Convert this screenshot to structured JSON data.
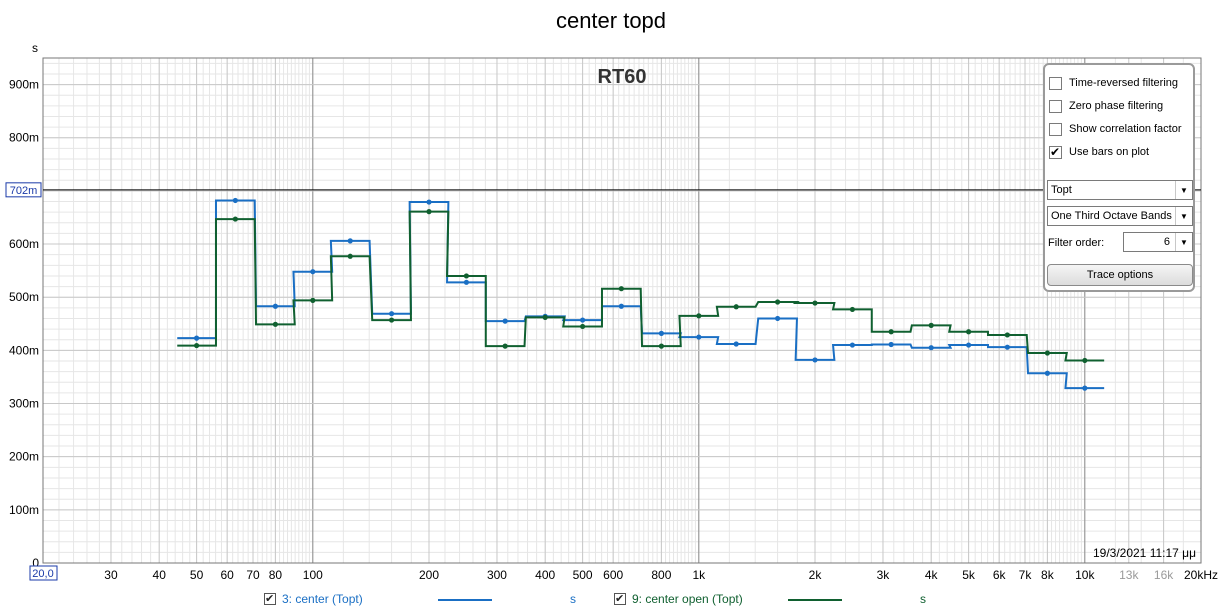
{
  "window_title": "center topd",
  "chart_data": {
    "type": "line",
    "title": "RT60",
    "ylabel_unit": "s",
    "x_scale": "log",
    "xlim": [
      20,
      20000
    ],
    "ylim": [
      0,
      0.95
    ],
    "x_ticks": [
      {
        "v": 20,
        "label": "20,0"
      },
      {
        "v": 30,
        "label": "30"
      },
      {
        "v": 40,
        "label": "40"
      },
      {
        "v": 50,
        "label": "50"
      },
      {
        "v": 60,
        "label": "60"
      },
      {
        "v": 70,
        "label": "70"
      },
      {
        "v": 80,
        "label": "80"
      },
      {
        "v": 100,
        "label": "100"
      },
      {
        "v": 200,
        "label": "200"
      },
      {
        "v": 300,
        "label": "300"
      },
      {
        "v": 400,
        "label": "400"
      },
      {
        "v": 500,
        "label": "500"
      },
      {
        "v": 600,
        "label": "600"
      },
      {
        "v": 800,
        "label": "800"
      },
      {
        "v": 1000,
        "label": "1k"
      },
      {
        "v": 2000,
        "label": "2k"
      },
      {
        "v": 3000,
        "label": "3k"
      },
      {
        "v": 4000,
        "label": "4k"
      },
      {
        "v": 5000,
        "label": "5k"
      },
      {
        "v": 6000,
        "label": "6k"
      },
      {
        "v": 7000,
        "label": "7k"
      },
      {
        "v": 8000,
        "label": "8k"
      },
      {
        "v": 10000,
        "label": "10k"
      },
      {
        "v": 13000,
        "label": "13k"
      },
      {
        "v": 16000,
        "label": "16k"
      },
      {
        "v": 20000,
        "label": "20kHz"
      }
    ],
    "y_ticks": [
      {
        "v": 0,
        "label": "0"
      },
      {
        "v": 0.1,
        "label": "100m"
      },
      {
        "v": 0.2,
        "label": "200m"
      },
      {
        "v": 0.3,
        "label": "300m"
      },
      {
        "v": 0.4,
        "label": "400m"
      },
      {
        "v": 0.5,
        "label": "500m"
      },
      {
        "v": 0.6,
        "label": "600m"
      },
      {
        "v": 0.7,
        "label": "700m"
      },
      {
        "v": 0.8,
        "label": "800m"
      },
      {
        "v": 0.9,
        "label": "900m"
      }
    ],
    "cursor_y": {
      "v": 0.702,
      "label": "702m"
    },
    "timestamp": "19/3/2021 11:17 μμ",
    "categories": [
      50,
      63,
      80,
      100,
      125,
      160,
      200,
      250,
      315,
      400,
      500,
      630,
      800,
      1000,
      1250,
      1600,
      2000,
      2500,
      3150,
      4000,
      5000,
      6300,
      8000,
      10000
    ],
    "series": [
      {
        "name": "3: center (Topt)",
        "color": "#1a6fc4",
        "values": [
          0.423,
          0.682,
          0.483,
          0.548,
          0.606,
          0.469,
          0.679,
          0.528,
          0.455,
          0.464,
          0.457,
          0.483,
          0.432,
          0.425,
          0.412,
          0.46,
          0.382,
          0.41,
          0.411,
          0.405,
          0.41,
          0.406,
          0.357,
          0.329
        ]
      },
      {
        "name": "9: center open (Topt)",
        "color": "#106030",
        "values": [
          0.409,
          0.647,
          0.449,
          0.494,
          0.577,
          0.457,
          0.661,
          0.54,
          0.408,
          0.462,
          0.445,
          0.516,
          0.408,
          0.465,
          0.482,
          0.491,
          0.489,
          0.477,
          0.435,
          0.447,
          0.435,
          0.429,
          0.395,
          0.381
        ]
      }
    ],
    "grid": true
  },
  "options_panel": {
    "time_reversed": {
      "label": "Time-reversed filtering",
      "checked": false
    },
    "zero_phase": {
      "label": "Zero phase filtering",
      "checked": false
    },
    "correlation": {
      "label": "Show correlation factor",
      "checked": false
    },
    "use_bars": {
      "label": "Use bars on plot",
      "checked": true
    },
    "method_select": "Topt",
    "bands_select": "One Third Octave Bands",
    "filter_order_label": "Filter order:",
    "filter_order_value": "6",
    "trace_button": "Trace options"
  },
  "legend": [
    {
      "label": "3: center (Topt)",
      "unit": "s",
      "color": "#1a6fc4"
    },
    {
      "label": "9: center open (Topt)",
      "unit": "s",
      "color": "#106030"
    }
  ]
}
